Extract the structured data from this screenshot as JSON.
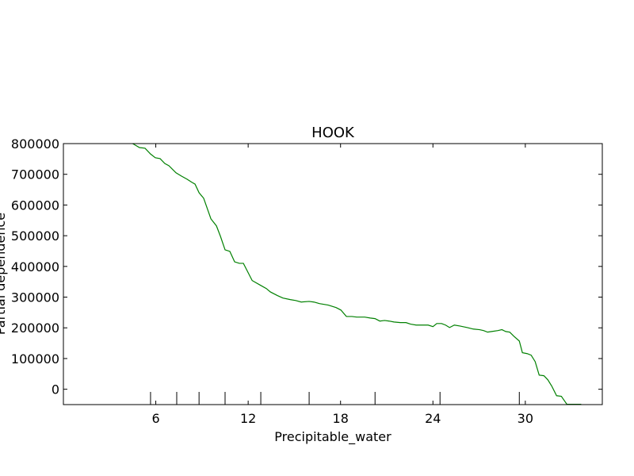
{
  "chart_data": {
    "type": "line",
    "title": "HOOK",
    "xlabel": "Precipitable_water",
    "ylabel": "Partial dependence",
    "x": [
      4.5,
      4.94,
      5.3,
      5.66,
      5.97,
      6.28,
      6.59,
      6.85,
      7.31,
      7.67,
      8.03,
      8.34,
      8.55,
      8.81,
      9.11,
      9.58,
      9.94,
      10.2,
      10.5,
      10.81,
      11.12,
      11.43,
      11.69,
      12.26,
      12.82,
      13.18,
      13.44,
      13.9,
      14.26,
      14.73,
      15.09,
      15.45,
      15.96,
      16.27,
      16.63,
      17.2,
      17.71,
      18.02,
      18.38,
      18.74,
      19.05,
      19.57,
      19.93,
      20.24,
      20.55,
      20.86,
      21.16,
      21.47,
      21.88,
      22.25,
      22.55,
      22.91,
      23.33,
      23.69,
      24.0,
      24.25,
      24.56,
      24.82,
      25.08,
      25.39,
      25.75,
      26.21,
      26.62,
      27.03,
      27.29,
      27.55,
      27.81,
      28.22,
      28.48,
      28.73,
      28.99,
      29.25,
      29.61,
      29.81,
      30.12,
      30.38,
      30.64,
      30.9,
      31.21,
      31.46,
      31.72,
      32.03,
      32.34,
      32.7,
      32.96,
      33.63
    ],
    "series": [
      {
        "color": "#008000",
        "values": [
          800000,
          787000,
          785000,
          766000,
          754000,
          751000,
          735000,
          728000,
          705000,
          694000,
          684000,
          674000,
          668000,
          640000,
          622000,
          555000,
          532000,
          498000,
          454000,
          449000,
          415000,
          410000,
          410000,
          354000,
          338000,
          328000,
          317000,
          305000,
          297000,
          292000,
          289000,
          284000,
          286000,
          284000,
          279000,
          274000,
          266000,
          258000,
          237000,
          237000,
          235000,
          235000,
          232000,
          230000,
          222000,
          224000,
          222000,
          219000,
          217000,
          217000,
          212000,
          209000,
          209000,
          209000,
          204000,
          214000,
          214000,
          209000,
          201000,
          209000,
          206000,
          201000,
          196000,
          194000,
          191000,
          186000,
          188000,
          191000,
          194000,
          188000,
          186000,
          173000,
          157000,
          119000,
          116000,
          111000,
          90000,
          46000,
          44000,
          31000,
          10000,
          -21000,
          -23000,
          -49000,
          -49000,
          -49000
        ]
      }
    ],
    "deciles": [
      5.66,
      7.36,
      8.81,
      10.5,
      12.82,
      15.96,
      20.24,
      24.46,
      29.61
    ],
    "xlim": [
      0,
      35
    ],
    "xticks": [
      6,
      12,
      18,
      24,
      30
    ],
    "ylim": [
      -50000,
      800000
    ],
    "yticks": [
      0,
      100000,
      200000,
      300000,
      400000,
      500000,
      600000,
      700000,
      800000
    ]
  }
}
